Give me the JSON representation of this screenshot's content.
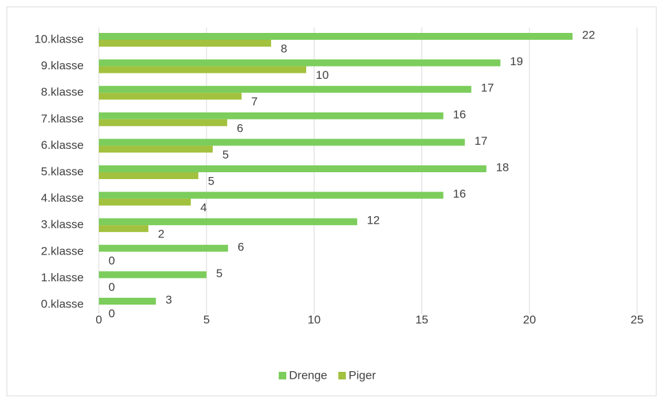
{
  "chart_data": {
    "type": "barh",
    "categories": [
      "0.klasse",
      "1.klasse",
      "2.klasse",
      "3.klasse",
      "4.klasse",
      "5.klasse",
      "6.klasse",
      "7.klasse",
      "8.klasse",
      "9.klasse",
      "10.klasse"
    ],
    "series": [
      {
        "name": "Drenge",
        "color": "#7ccd5c",
        "values": [
          2.65,
          5,
          6,
          12,
          16,
          18,
          17,
          16,
          17.3,
          18.65,
          22
        ],
        "value_labels": [
          "3",
          "5",
          "6",
          "12",
          "16",
          "18",
          "17",
          "16",
          "17",
          "19",
          "22"
        ]
      },
      {
        "name": "Piger",
        "color": "#a2c13e",
        "values": [
          0,
          0,
          0,
          2.3,
          4.27,
          4.62,
          5.29,
          5.96,
          6.63,
          9.63,
          8
        ],
        "value_labels": [
          "0",
          "0",
          "0",
          "2",
          "4",
          "5",
          "5",
          "6",
          "7",
          "10",
          "8"
        ]
      }
    ],
    "xlim": [
      0,
      25
    ],
    "xticks": [
      0,
      5,
      10,
      15,
      20,
      25
    ],
    "grid": true,
    "legend": "bottom"
  }
}
